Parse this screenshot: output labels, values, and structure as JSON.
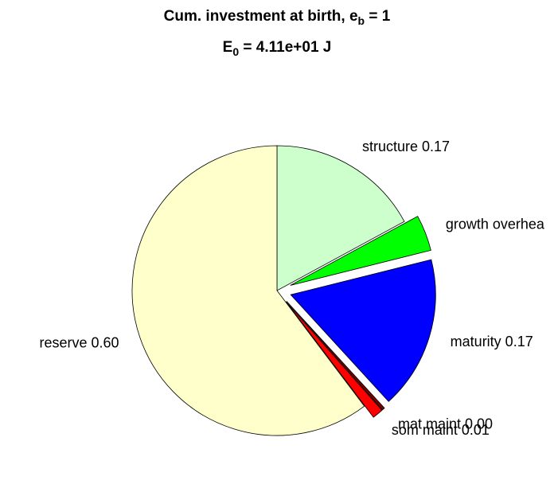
{
  "chart_data": {
    "type": "pie",
    "title": {
      "main": "Cum. investment at birth, e",
      "sub": "b",
      "tail": " = 1"
    },
    "subtitle": {
      "main": "E",
      "sub": "0",
      "tail": " = 4.11e+01 J"
    },
    "categories": [
      "structure 0.17",
      "growth overhea",
      "maturity 0.17",
      "mat maint 0.00",
      "som maint 0.01",
      "reserve 0.60"
    ],
    "values": [
      0.17,
      0.04,
      0.17,
      0.003,
      0.012,
      0.6
    ],
    "colors": [
      "#ccffcc",
      "#00ff00",
      "#0000ff",
      "#800000",
      "#ff0000",
      "#ffffcc"
    ],
    "explode": [
      false,
      true,
      true,
      true,
      true,
      false
    ]
  }
}
